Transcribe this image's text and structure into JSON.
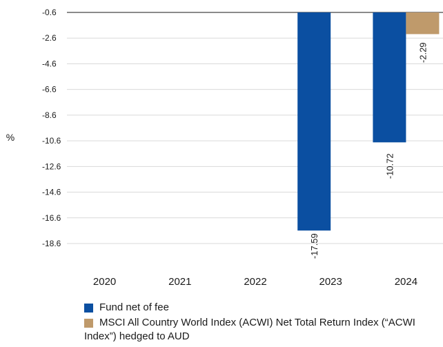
{
  "chart_data": {
    "type": "bar",
    "title": "",
    "xlabel": "",
    "ylabel": "%",
    "categories": [
      "2020",
      "2021",
      "2022",
      "2023",
      "2024"
    ],
    "y_ticks": [
      "-0.6",
      "-2.6",
      "-4.6",
      "-6.6",
      "-8.6",
      "-10.6",
      "-12.6",
      "-14.6",
      "-16.6",
      "-18.6"
    ],
    "ylim": [
      -18.6,
      -0.6
    ],
    "grid": "horizontal",
    "legend_position": "bottom",
    "series": [
      {
        "name": "Fund net of fee",
        "color": "#0b4fa1",
        "values": [
          null,
          null,
          null,
          -17.59,
          -10.72
        ],
        "labels": [
          "",
          "",
          "",
          "-17.59",
          "-10.72"
        ]
      },
      {
        "name": "MSCI All Country World Index (ACWI) Net Total Return Index (“ACWI Index”) hedged to AUD",
        "color": "#bf9a6b",
        "values": [
          null,
          null,
          null,
          null,
          -2.29
        ],
        "labels": [
          "",
          "",
          "",
          "",
          "-2.29"
        ]
      }
    ]
  },
  "legend": {
    "item1": "Fund net of fee",
    "item2": "MSCI All Country World Index (ACWI) Net Total Return Index (“ACWI Index”) hedged to AUD"
  }
}
